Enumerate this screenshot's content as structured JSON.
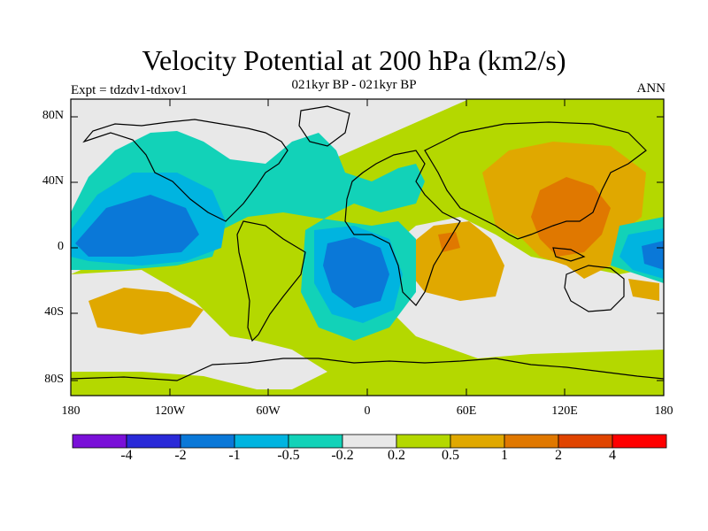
{
  "title": "Velocity Potential at 200 hPa (km2/s)",
  "subtitle": "021kyr BP - 021kyr BP",
  "left_note": "Expt = tdzdv1-tdxov1",
  "right_note": "ANN",
  "lat_labels": [
    "80N",
    "40N",
    "0",
    "40S",
    "80S"
  ],
  "lon_labels": [
    "180",
    "120W",
    "60W",
    "0",
    "60E",
    "120E",
    "180"
  ],
  "colorbar": {
    "labels": [
      "-4",
      "-2",
      "-1",
      "-0.5",
      "-0.2",
      "0.2",
      "0.5",
      "1",
      "2",
      "4"
    ],
    "colors": [
      "#7a10d8",
      "#2a2ad8",
      "#0a78d8",
      "#00b4e0",
      "#12d2b8",
      "#e8e8e8",
      "#b4d800",
      "#e0a800",
      "#e07800",
      "#e04400",
      "#ff0000"
    ]
  }
}
